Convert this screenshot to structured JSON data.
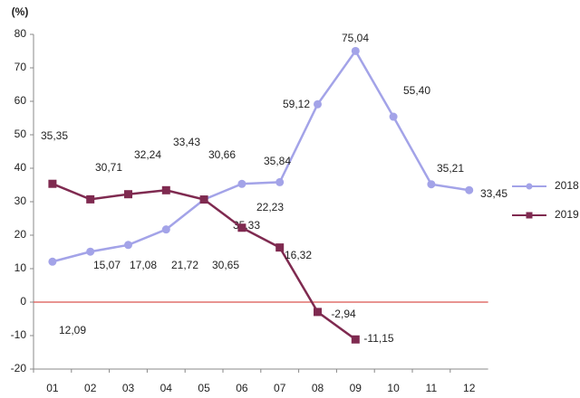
{
  "chart_data": {
    "type": "line",
    "y_label": "(%)",
    "categories": [
      "01",
      "02",
      "03",
      "04",
      "05",
      "06",
      "07",
      "08",
      "09",
      "10",
      "11",
      "12"
    ],
    "series": [
      {
        "name": "2018",
        "color": "#a3a3e8",
        "marker": "circle",
        "values": [
          12.09,
          15.07,
          17.08,
          21.72,
          30.65,
          35.33,
          35.84,
          59.12,
          75.04,
          55.4,
          35.21,
          33.45
        ],
        "value_labels": [
          "12,09",
          "15,07",
          "17,08",
          "21,72",
          "30,65",
          "35,33",
          "35,84",
          "59,12",
          "75,04",
          "55,40",
          "35,21",
          "33,45"
        ]
      },
      {
        "name": "2019",
        "color": "#7f2a50",
        "marker": "square",
        "values": [
          35.35,
          30.71,
          32.24,
          33.43,
          30.66,
          22.23,
          16.32,
          -2.94,
          -11.15,
          null,
          null,
          null
        ],
        "value_labels": [
          "35,35",
          "30,71",
          "32,24",
          "33,43",
          "30,66",
          "22,23",
          "16,32",
          "-2,94",
          "-11,15",
          null,
          null,
          null
        ]
      }
    ],
    "ylim": [
      -20,
      80
    ],
    "yticks": [
      -20,
      -10,
      0,
      10,
      20,
      30,
      40,
      50,
      60,
      70,
      80
    ],
    "zero_line_color": "#d9534f",
    "legend": "right"
  }
}
